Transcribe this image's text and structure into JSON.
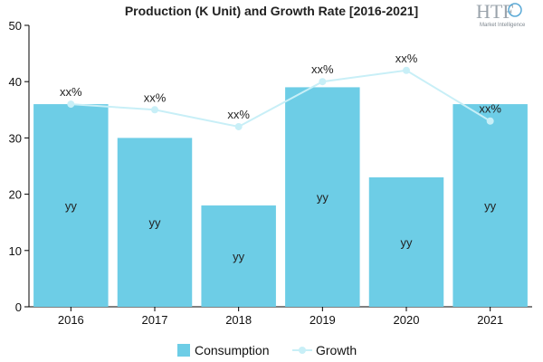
{
  "logo": {
    "mark": "HTF",
    "subtitle": "Market Intelligence"
  },
  "legend_position": "bottom",
  "chart_data": {
    "type": "bar",
    "title": "Production (K Unit) and Growth Rate [2016-2021]",
    "categories": [
      "2016",
      "2017",
      "2018",
      "2019",
      "2020",
      "2021"
    ],
    "ylim": [
      0,
      50
    ],
    "yticks": [
      0,
      10,
      20,
      30,
      40,
      50
    ],
    "grid": false,
    "series": [
      {
        "name": "Consumption",
        "type": "bar",
        "color": "#6dcde6",
        "values": [
          36,
          30,
          18,
          39,
          23,
          36
        ],
        "labels": [
          "yy",
          "yy",
          "yy",
          "yy",
          "yy",
          "yy"
        ]
      },
      {
        "name": "Growth",
        "type": "line",
        "color": "#c8eff7",
        "values": [
          36,
          35,
          32,
          40,
          42,
          33
        ],
        "labels": [
          "xx%",
          "xx%",
          "xx%",
          "xx%",
          "xx%",
          "xx%"
        ]
      }
    ]
  }
}
